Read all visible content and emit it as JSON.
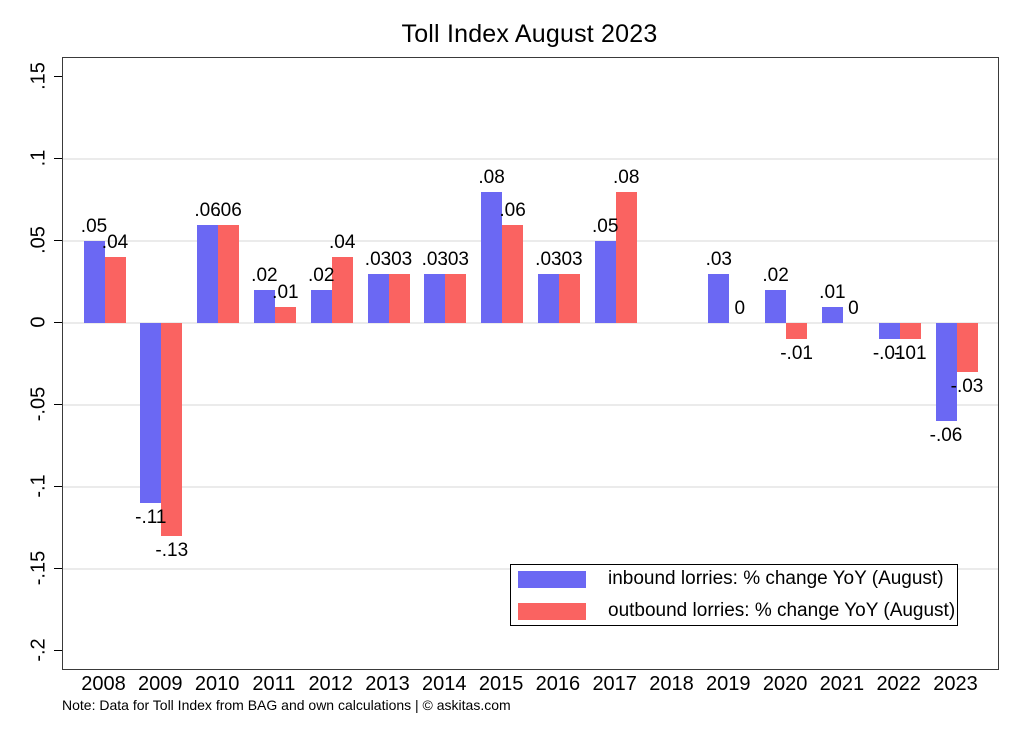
{
  "note": "Note: Data for Toll Index from BAG and own calculations | © askitas.com",
  "chart_data": {
    "type": "bar",
    "title": "Toll Index August 2023",
    "categories": [
      "2008",
      "2009",
      "2010",
      "2011",
      "2012",
      "2013",
      "2014",
      "2015",
      "2016",
      "2017",
      "2018",
      "2019",
      "2020",
      "2021",
      "2022",
      "2023"
    ],
    "series": [
      {
        "name": "inbound lorries: % change YoY (August)",
        "color": "#6b68f3",
        "values": [
          0.05,
          -0.11,
          0.06,
          0.02,
          0.02,
          0.03,
          0.03,
          0.08,
          0.03,
          0.05,
          null,
          0.03,
          0.02,
          0.01,
          -0.01,
          -0.06
        ]
      },
      {
        "name": "outbound lorries: % change YoY (August)",
        "color": "#fa6361",
        "values": [
          0.04,
          -0.13,
          0.06,
          0.01,
          0.04,
          0.03,
          0.03,
          0.06,
          0.03,
          0.08,
          null,
          0,
          -0.01,
          0,
          -0.01,
          -0.03
        ]
      }
    ],
    "xlabel": "",
    "ylabel": "",
    "ylim": [
      -0.211,
      0.1616
    ],
    "yticks": {
      "values": [
        0.15,
        0.1,
        0.05,
        0,
        -0.05,
        -0.1,
        -0.15,
        -0.2
      ],
      "labels": [
        ".15",
        ".1",
        ".05",
        "0",
        "-.05",
        "-.1",
        "-.15",
        "-.2"
      ]
    },
    "gridline_values": [
      0.1,
      0.05,
      0,
      -0.05,
      -0.1,
      -0.15
    ],
    "grid": true,
    "legend_position": "inside-bottom-right",
    "bar_value_labels": true
  }
}
